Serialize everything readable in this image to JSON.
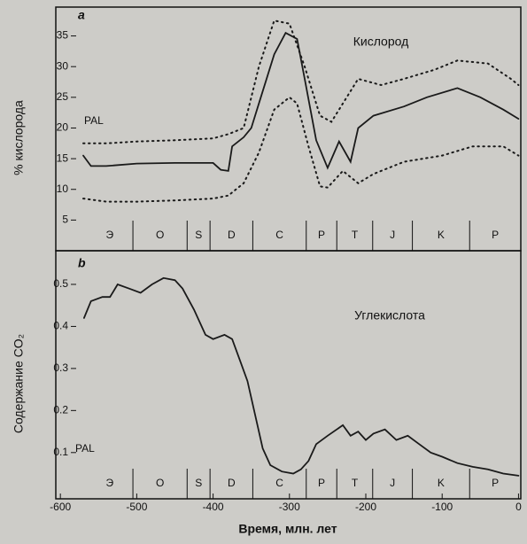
{
  "chart_data": [
    {
      "type": "line",
      "panel_label": "a",
      "title": "Кислород",
      "ylabel": "% кислорода",
      "note": "PAL",
      "xlim": [
        -606,
        3
      ],
      "ylim": [
        0,
        39.7
      ],
      "yticks": [
        5,
        10,
        15,
        20,
        25,
        30,
        35
      ],
      "periods": [
        "Э",
        "O",
        "S",
        "D",
        "C",
        "P",
        "T",
        "J",
        "K",
        "P"
      ],
      "period_boundaries": [
        -505,
        -434,
        -404,
        -348,
        -278,
        -238,
        -191,
        -139,
        -64
      ],
      "series": [
        {
          "color": "#1a1a1a",
          "style": "solid",
          "x": [
            -570,
            -560,
            -540,
            -500,
            -450,
            -400,
            -390,
            -380,
            -375,
            -360,
            -350,
            -340,
            -320,
            -305,
            -290,
            -280,
            -265,
            -250,
            -235,
            -220,
            -210,
            -190,
            -150,
            -120,
            -80,
            -50,
            -20,
            0
          ],
          "values": [
            15.5,
            13.8,
            13.8,
            14.2,
            14.3,
            14.3,
            13.2,
            13,
            17,
            18.5,
            20,
            24,
            32,
            35.5,
            34.5,
            28,
            18,
            13.5,
            17.8,
            14.5,
            20,
            22,
            23.5,
            25,
            26.5,
            25,
            23,
            21.5
          ]
        },
        {
          "color": "#1a1a1a",
          "style": "dotted",
          "x": [
            -570,
            -540,
            -500,
            -450,
            -400,
            -380,
            -360,
            -340,
            -320,
            -300,
            -280,
            -260,
            -245,
            -230,
            -210,
            -180,
            -150,
            -110,
            -80,
            -40,
            -10,
            0
          ],
          "values": [
            17.5,
            17.5,
            17.8,
            18,
            18.3,
            19,
            20,
            30,
            37.5,
            37,
            30,
            22,
            21,
            24,
            28,
            27,
            28,
            29.5,
            31,
            30.5,
            28,
            27
          ]
        },
        {
          "color": "#1a1a1a",
          "style": "dotted",
          "x": [
            -570,
            -540,
            -500,
            -450,
            -400,
            -380,
            -360,
            -340,
            -320,
            -300,
            -290,
            -275,
            -260,
            -250,
            -230,
            -210,
            -190,
            -150,
            -100,
            -60,
            -20,
            0
          ],
          "values": [
            8.5,
            8,
            8,
            8.2,
            8.5,
            9,
            11,
            16,
            23,
            25,
            24,
            17,
            10.5,
            10.3,
            13,
            11,
            12.5,
            14.5,
            15.5,
            17,
            17,
            15.5
          ]
        }
      ]
    },
    {
      "type": "line",
      "panel_label": "b",
      "title": "Углекислота",
      "ylabel": "Содержание CO₂",
      "note": "PAL",
      "xlabel": "Время, млн. лет",
      "xlim": [
        -606,
        3
      ],
      "ylim": [
        -0.01,
        0.58
      ],
      "yticks": [
        0.1,
        0.2,
        0.3,
        0.4,
        0.5
      ],
      "xticks": [
        -600,
        -500,
        -400,
        -300,
        -200,
        -100,
        0
      ],
      "periods": [
        "Э",
        "O",
        "S",
        "D",
        "C",
        "P",
        "T",
        "J",
        "K",
        "P"
      ],
      "period_boundaries": [
        -505,
        -434,
        -404,
        -348,
        -278,
        -238,
        -191,
        -139,
        -64
      ],
      "series": [
        {
          "color": "#1a1a1a",
          "style": "solid",
          "x": [
            -569,
            -560,
            -545,
            -535,
            -525,
            -510,
            -495,
            -480,
            -465,
            -450,
            -440,
            -425,
            -410,
            -400,
            -385,
            -375,
            -365,
            -355,
            -345,
            -335,
            -325,
            -310,
            -295,
            -285,
            -275,
            -265,
            -250,
            -230,
            -220,
            -210,
            -200,
            -190,
            -175,
            -160,
            -145,
            -130,
            -115,
            -100,
            -80,
            -60,
            -40,
            -20,
            0
          ],
          "values": [
            0.42,
            0.46,
            0.47,
            0.47,
            0.5,
            0.49,
            0.48,
            0.5,
            0.515,
            0.51,
            0.49,
            0.44,
            0.38,
            0.37,
            0.38,
            0.37,
            0.32,
            0.27,
            0.19,
            0.11,
            0.07,
            0.055,
            0.05,
            0.06,
            0.08,
            0.12,
            0.14,
            0.165,
            0.14,
            0.15,
            0.13,
            0.145,
            0.155,
            0.13,
            0.14,
            0.12,
            0.1,
            0.09,
            0.075,
            0.066,
            0.06,
            0.05,
            0.045
          ]
        }
      ]
    }
  ]
}
